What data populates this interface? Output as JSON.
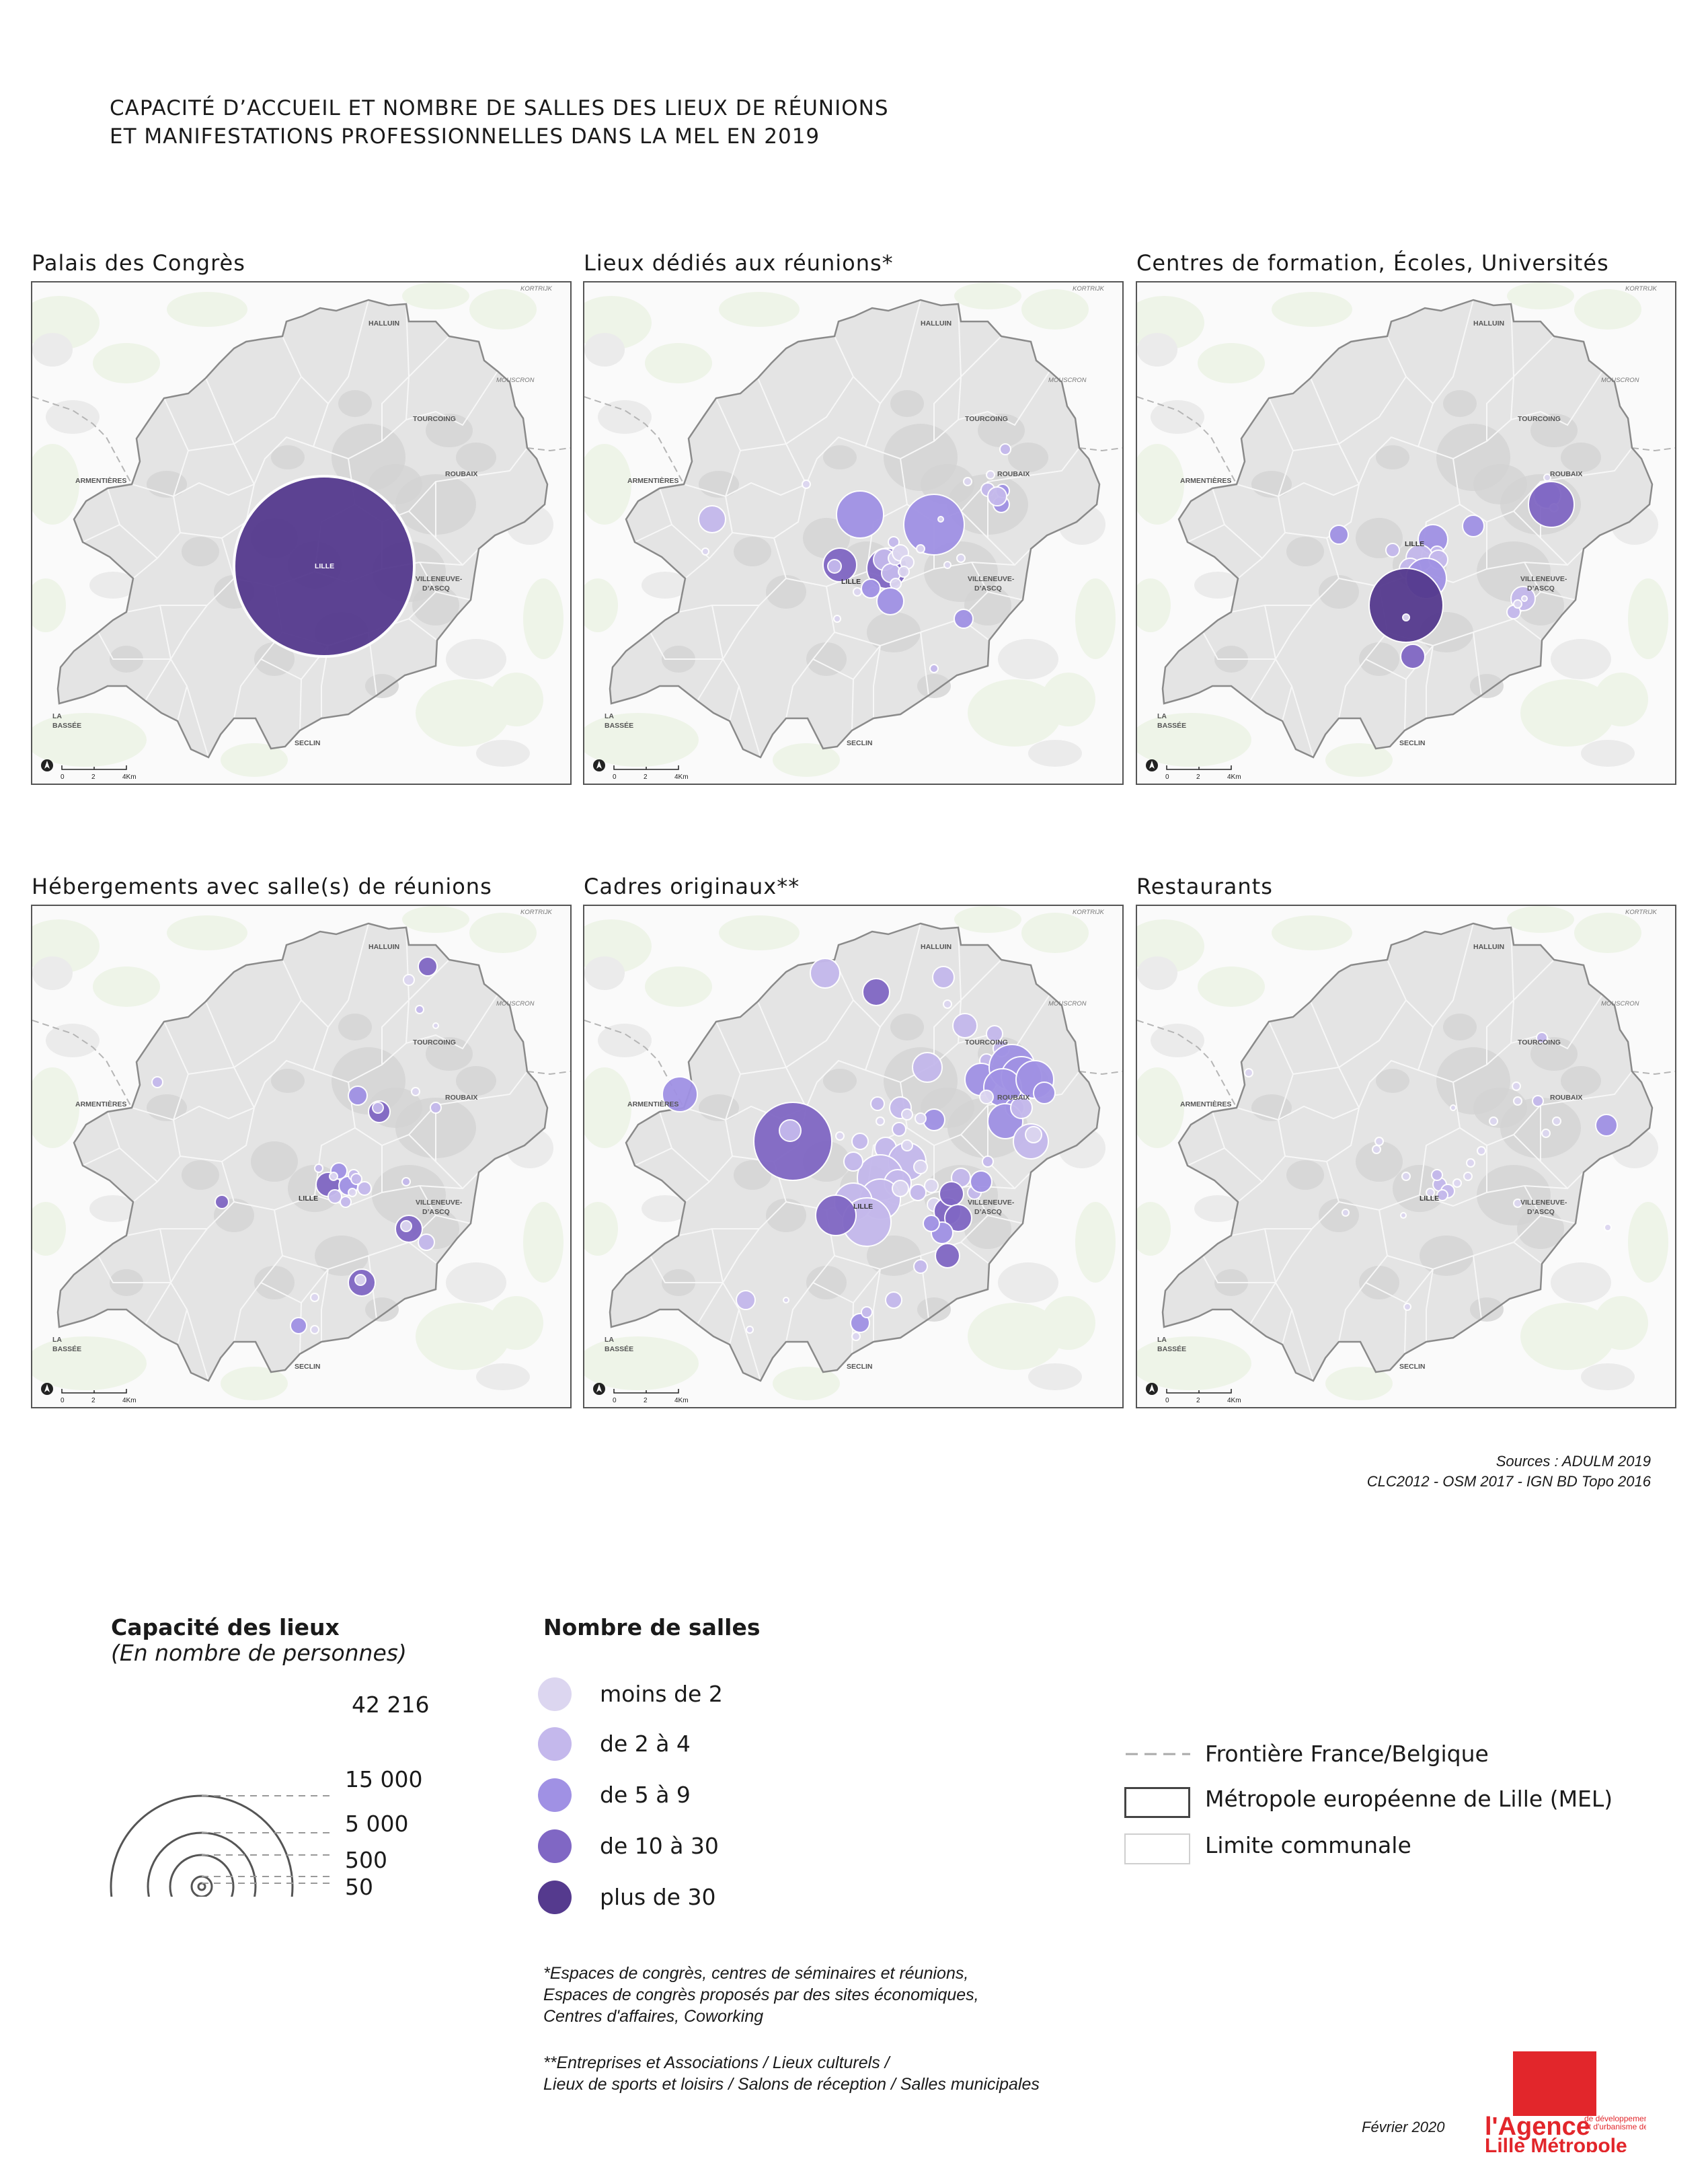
{
  "title": {
    "line1": "CAPACITÉ D’ACCUEIL ET NOMBRE DE SALLES DES LIEUX DE RÉUNIONS",
    "line2": "ET MANIFESTATIONS PROFESSIONNELLES DANS LA MEL EN 2019"
  },
  "panels": [
    {
      "title": "Palais des Congrès"
    },
    {
      "title": "Lieux dédiés aux réunions*"
    },
    {
      "title": "Centres de formation, Écoles, Universités"
    },
    {
      "title": "Hébergements avec salle(s) de réunions"
    },
    {
      "title": "Cadres originaux**"
    },
    {
      "title": "Restaurants"
    }
  ],
  "map_labels": {
    "kortrijk": "KORTRIJK",
    "halluin": "HALLUIN",
    "mouscron": "MOUSCRON",
    "tourcoing": "TOURCOING",
    "roubaix": "ROUBAIX",
    "armentieres": "ARMENTIÈRES",
    "lille": "LILLE",
    "villeneuve1": "VILLENEUVE-",
    "villeneuve2": "D’ASCQ",
    "labassee1": "LA",
    "labassee2": "BASSÉE",
    "seclin": "SECLIN",
    "scale0": "0",
    "scale2": "2",
    "scale4": "4Km"
  },
  "sources": {
    "line1": "Sources : ADULM 2019",
    "line2": "CLC2012 -  OSM 2017 - IGN BD Topo 2016"
  },
  "legend_capacity": {
    "title": "Capacité des lieux",
    "subtitle": "(En nombre de personnes)",
    "values": [
      "42 216",
      "15 000",
      "5 000",
      "500",
      "50"
    ]
  },
  "legend_rooms": {
    "title": "Nombre de salles",
    "classes": [
      {
        "label": "moins de 2",
        "color": "#dcd6f0"
      },
      {
        "label": "de 2 à 4",
        "color": "#c4b8ec"
      },
      {
        "label": "de 5 à 9",
        "color": "#a091e4"
      },
      {
        "label": "de 10 à 30",
        "color": "#8067c4"
      },
      {
        "label": "plus de 30",
        "color": "#553a8e"
      }
    ]
  },
  "legend_lines": {
    "border": "Frontière France/Belgique",
    "mel": "Métropole européenne de Lille (MEL)",
    "commune": "Limite communale"
  },
  "notes": {
    "n1_1": "*Espaces de congrès, centres de séminaires et réunions,",
    "n1_2": "Espaces de congrès proposés par des sites économiques,",
    "n1_3": "Centres d'affaires, Coworking",
    "n2_1": "**Entreprises et Associations / Lieux culturels /",
    "n2_2": "Lieux de sports et loisirs / Salons de réception / Salles municipales"
  },
  "date": "Février 2020",
  "logo": {
    "line1": "l'Agence",
    "line2": "Lille Métropole",
    "tag1": "de développement",
    "tag2": "et d'urbanisme de",
    "color": "#e2262b"
  }
}
